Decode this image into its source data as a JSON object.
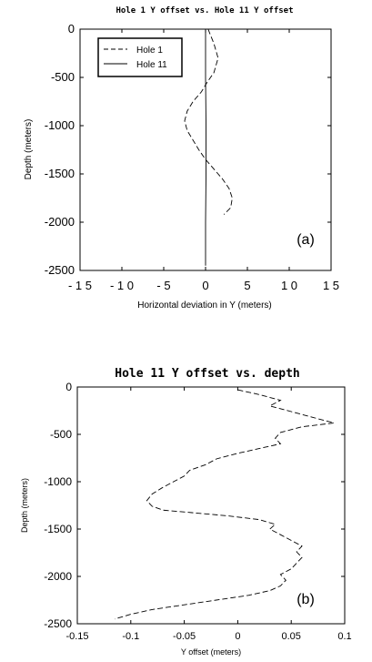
{
  "chart_data": [
    {
      "type": "line",
      "title": "Hole 1 Y offset vs. Hole 11 Y offset",
      "xlabel": "Horizontal deviation in Y (meters)",
      "ylabel": "Depth (meters)",
      "panel_label": "(a)",
      "xlim": [
        -15,
        15
      ],
      "ylim": [
        -2500,
        0
      ],
      "xticks": [
        -15,
        -10,
        -5,
        0,
        5,
        10,
        15
      ],
      "xtick_labels": [
        "- 1 5",
        "- 1 0",
        "- 5",
        "0",
        "5",
        "1 0",
        "1 5"
      ],
      "yticks": [
        0,
        -500,
        -1000,
        -1500,
        -2000,
        -2500
      ],
      "ytick_labels": [
        "0",
        "-500",
        "-1000",
        "-1500",
        "-2000",
        "-2500"
      ],
      "legend_position": "top-left",
      "series": [
        {
          "name": "Hole 1",
          "style": "dashed",
          "points": [
            [
              0.3,
              0
            ],
            [
              1.0,
              -150
            ],
            [
              1.5,
              -300
            ],
            [
              1.0,
              -450
            ],
            [
              0.2,
              -550
            ],
            [
              -0.5,
              -650
            ],
            [
              -1.5,
              -750
            ],
            [
              -2.2,
              -850
            ],
            [
              -2.5,
              -950
            ],
            [
              -2.2,
              -1050
            ],
            [
              -1.5,
              -1150
            ],
            [
              -0.8,
              -1250
            ],
            [
              0.0,
              -1350
            ],
            [
              1.0,
              -1450
            ],
            [
              2.0,
              -1550
            ],
            [
              2.8,
              -1650
            ],
            [
              3.2,
              -1750
            ],
            [
              3.0,
              -1850
            ],
            [
              2.2,
              -1920
            ]
          ]
        },
        {
          "name": "Hole 11",
          "style": "solid",
          "points": [
            [
              0.0,
              0
            ],
            [
              0.0,
              -500
            ],
            [
              0.05,
              -1000
            ],
            [
              0.05,
              -1500
            ],
            [
              0.0,
              -2000
            ],
            [
              0.0,
              -2450
            ]
          ]
        }
      ]
    },
    {
      "type": "line",
      "title": "Hole 11 Y offset vs. depth",
      "xlabel": "Y offset (meters)",
      "ylabel": "Depth (meters)",
      "panel_label": "(b)",
      "xlim": [
        -0.15,
        0.1
      ],
      "ylim": [
        -2500,
        0
      ],
      "xticks": [
        -0.15,
        -0.1,
        -0.05,
        0,
        0.05,
        0.1
      ],
      "xtick_labels": [
        "-0.15",
        "-0.1",
        "-0.05",
        "0",
        "0.05",
        "0.1"
      ],
      "yticks": [
        0,
        -500,
        -1000,
        -1500,
        -2000,
        -2500
      ],
      "ytick_labels": [
        "0",
        "-500",
        "-1000",
        "-1500",
        "-2000",
        "-2500"
      ],
      "series": [
        {
          "style": "dashed",
          "points": [
            [
              0.0,
              -30
            ],
            [
              0.02,
              -80
            ],
            [
              0.04,
              -140
            ],
            [
              0.03,
              -200
            ],
            [
              0.05,
              -260
            ],
            [
              0.07,
              -320
            ],
            [
              0.09,
              -380
            ],
            [
              0.06,
              -420
            ],
            [
              0.04,
              -480
            ],
            [
              0.035,
              -540
            ],
            [
              0.04,
              -600
            ],
            [
              0.02,
              -650
            ],
            [
              0.0,
              -700
            ],
            [
              -0.02,
              -760
            ],
            [
              -0.03,
              -820
            ],
            [
              -0.045,
              -880
            ],
            [
              -0.05,
              -940
            ],
            [
              -0.06,
              -1000
            ],
            [
              -0.07,
              -1060
            ],
            [
              -0.08,
              -1130
            ],
            [
              -0.085,
              -1200
            ],
            [
              -0.08,
              -1260
            ],
            [
              -0.07,
              -1300
            ],
            [
              -0.04,
              -1330
            ],
            [
              -0.01,
              -1360
            ],
            [
              0.02,
              -1400
            ],
            [
              0.035,
              -1450
            ],
            [
              0.03,
              -1500
            ],
            [
              0.04,
              -1560
            ],
            [
              0.05,
              -1620
            ],
            [
              0.06,
              -1680
            ],
            [
              0.055,
              -1740
            ],
            [
              0.06,
              -1800
            ],
            [
              0.055,
              -1860
            ],
            [
              0.05,
              -1920
            ],
            [
              0.04,
              -1980
            ],
            [
              0.045,
              -2040
            ],
            [
              0.04,
              -2100
            ],
            [
              0.03,
              -2150
            ],
            [
              0.01,
              -2200
            ],
            [
              -0.02,
              -2250
            ],
            [
              -0.05,
              -2300
            ],
            [
              -0.08,
              -2350
            ],
            [
              -0.1,
              -2400
            ],
            [
              -0.115,
              -2450
            ]
          ]
        }
      ]
    }
  ]
}
